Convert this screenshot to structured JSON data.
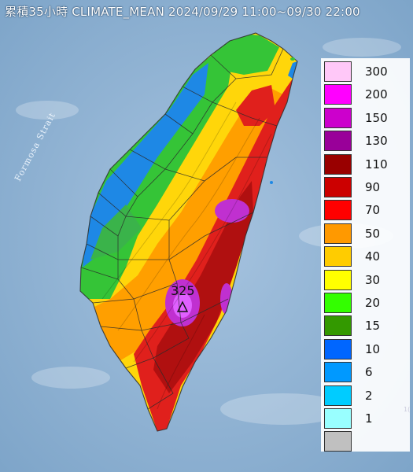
{
  "header": {
    "title": "累積35小時 CLIMATE_MEAN 2024/09/29 11:00~09/30 22:00"
  },
  "map": {
    "strait_label": "Formosa Strait",
    "max_value_label": "325",
    "colors": {
      "sea": "#8fb4d4",
      "blue": "#1e88e5",
      "green": "#35c437",
      "yellow": "#ffd60a",
      "orange": "#ff9f00",
      "red": "#e0201c",
      "darkred": "#b01010",
      "purple": "#c030d0",
      "magenta": "#ff00ff"
    }
  },
  "legend": {
    "title": "",
    "entries": [
      {
        "label": "300",
        "color": "#ffc8f8"
      },
      {
        "label": "200",
        "color": "#ff00ff"
      },
      {
        "label": "150",
        "color": "#cc00cc"
      },
      {
        "label": "130",
        "color": "#990099"
      },
      {
        "label": "110",
        "color": "#990000"
      },
      {
        "label": "90",
        "color": "#cc0000"
      },
      {
        "label": "70",
        "color": "#ff0000"
      },
      {
        "label": "50",
        "color": "#ff9900"
      },
      {
        "label": "40",
        "color": "#ffcc00"
      },
      {
        "label": "30",
        "color": "#ffff00"
      },
      {
        "label": "20",
        "color": "#33ff00"
      },
      {
        "label": "15",
        "color": "#339900"
      },
      {
        "label": "10",
        "color": "#0066ff"
      },
      {
        "label": "6",
        "color": "#0099ff"
      },
      {
        "label": "2",
        "color": "#00ccff"
      },
      {
        "label": "1",
        "color": "#99ffff"
      },
      {
        "label": "",
        "color": "#c0c0c0"
      }
    ]
  }
}
